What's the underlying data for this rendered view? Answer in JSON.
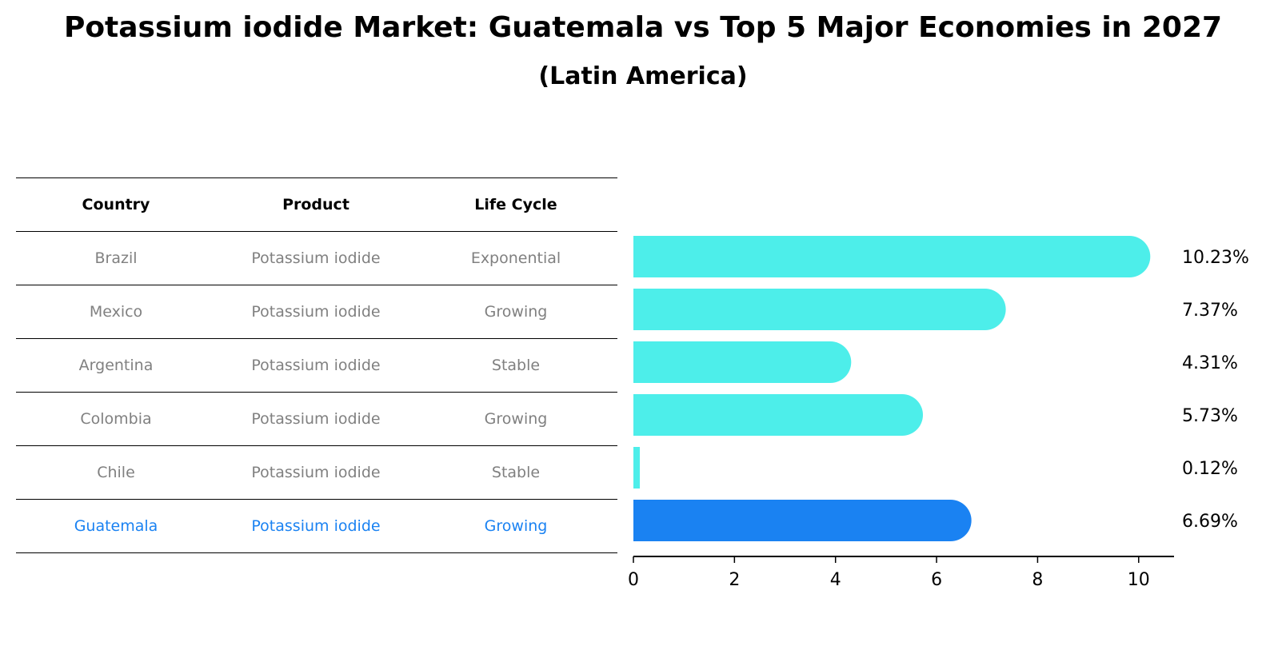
{
  "title": "Potassium iodide Market: Guatemala vs Top 5 Major Economies in 2027",
  "subtitle": "(Latin America)",
  "colors": {
    "bar": "#4DEEEA",
    "highlight": "#1A82F2",
    "muted_text": "#808080"
  },
  "table": {
    "headers": [
      "Country",
      "Product",
      "Life Cycle"
    ],
    "rows": [
      {
        "country": "Brazil",
        "product": "Potassium iodide",
        "life_cycle": "Exponential"
      },
      {
        "country": "Mexico",
        "product": "Potassium iodide",
        "life_cycle": "Growing"
      },
      {
        "country": "Argentina",
        "product": "Potassium iodide",
        "life_cycle": "Stable"
      },
      {
        "country": "Colombia",
        "product": "Potassium iodide",
        "life_cycle": "Growing"
      },
      {
        "country": "Chile",
        "product": "Potassium iodide",
        "life_cycle": "Stable"
      },
      {
        "country": "Guatemala",
        "product": "Potassium iodide",
        "life_cycle": "Growing"
      }
    ]
  },
  "chart_data": {
    "type": "bar",
    "orientation": "horizontal",
    "categories": [
      "Brazil",
      "Mexico",
      "Argentina",
      "Colombia",
      "Chile",
      "Guatemala"
    ],
    "values": [
      10.23,
      7.37,
      4.31,
      5.73,
      0.12,
      6.69
    ],
    "value_labels": [
      "10.23%",
      "7.37%",
      "4.31%",
      "5.73%",
      "0.12%",
      "6.69%"
    ],
    "highlight": "Guatemala",
    "xlim": [
      0,
      10.7
    ],
    "xticks": [
      0,
      2,
      4,
      6,
      8,
      10
    ],
    "xtick_labels": [
      "0",
      "2",
      "4",
      "6",
      "8",
      "10"
    ],
    "xlabel": "",
    "ylabel": ""
  }
}
